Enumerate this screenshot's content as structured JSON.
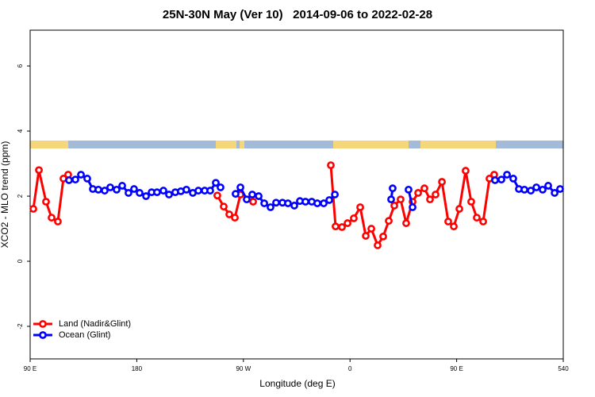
{
  "chart_data": {
    "type": "line",
    "title": "25N-30N May (Ver 10)   2014-09-06 to 2022-02-28",
    "x_label": "Longitude (deg E)",
    "y_label": "XCO2 - MLO trend (ppm)",
    "xlim": [
      90,
      540
    ],
    "ylim": [
      -3,
      7.1
    ],
    "xticks": [
      {
        "value": 90,
        "label": "90 E"
      },
      180,
      {
        "value": 270,
        "label": "90 W"
      },
      {
        "value": 360,
        "label": "0"
      },
      {
        "value": 450,
        "label": "90 E"
      },
      540
    ],
    "yticks": [
      -2,
      0,
      2,
      4,
      6
    ],
    "legend": "bottomleft",
    "series": [
      {
        "name": "Land (Nadir&Glint)",
        "color": "#ff0000",
        "x": [
          92.7,
          97.4,
          103.4,
          108.1,
          113.4,
          118.1,
          122.1,
          null,
          248.0,
          253.4,
          258.1,
          262.8,
          267.5,
          null,
          278.2,
          null,
          343.8,
          347.8,
          353.2,
          357.9,
          363.2,
          368.6,
          373.3,
          378.0,
          383.3,
          388.0,
          392.7,
          397.4,
          402.7,
          407.4,
          412.8,
          417.5,
          422.8,
          427.5,
          432.2,
          437.6,
          442.9,
          447.6,
          452.3,
          457.6,
          462.3,
          467.0,
          472.4,
          477.7,
          481.7
        ],
        "values": [
          1.61,
          2.8,
          1.83,
          1.34,
          1.22,
          2.54,
          2.66,
          null,
          2.02,
          1.68,
          1.44,
          1.34,
          2.05,
          null,
          1.83,
          null,
          2.95,
          1.07,
          1.05,
          1.17,
          1.32,
          1.66,
          0.78,
          1.0,
          0.49,
          0.76,
          1.24,
          1.71,
          1.9,
          1.17,
          1.83,
          2.1,
          2.24,
          1.9,
          2.05,
          2.44,
          1.22,
          1.07,
          1.61,
          2.78,
          1.83,
          1.34,
          1.22,
          2.54,
          2.66
        ]
      },
      {
        "name": "Ocean (Glint)",
        "color": "#0000ff",
        "x": [
          122.8,
          128.2,
          132.9,
          138.2,
          142.9,
          147.6,
          152.9,
          157.6,
          163.0,
          167.7,
          173.0,
          177.7,
          182.4,
          187.8,
          192.5,
          197.1,
          202.5,
          207.2,
          212.5,
          217.2,
          221.9,
          227.3,
          232.0,
          237.3,
          242.0,
          246.7,
          250.7,
          null,
          263.4,
          267.5,
          272.8,
          277.5,
          282.9,
          287.6,
          292.9,
          297.6,
          303.0,
          307.6,
          313.0,
          317.7,
          322.4,
          327.7,
          332.4,
          337.8,
          342.5,
          347.2,
          null,
          394.7,
          396.0,
          null,
          409.4,
          412.8,
          null,
          482.4,
          487.8,
          492.5,
          497.8,
          502.5,
          507.2,
          512.6,
          517.3,
          522.6,
          527.3,
          532.7,
          537.3
        ],
        "values": [
          2.49,
          2.51,
          2.66,
          2.54,
          2.22,
          2.2,
          2.17,
          2.27,
          2.2,
          2.32,
          2.1,
          2.22,
          2.1,
          2.0,
          2.12,
          2.12,
          2.17,
          2.05,
          2.12,
          2.15,
          2.2,
          2.1,
          2.17,
          2.17,
          2.17,
          2.41,
          2.27,
          null,
          2.07,
          2.27,
          1.9,
          2.05,
          2.0,
          1.78,
          1.66,
          1.8,
          1.8,
          1.78,
          1.71,
          1.85,
          1.83,
          1.83,
          1.78,
          1.78,
          1.88,
          2.05,
          null,
          1.9,
          2.24,
          null,
          2.2,
          1.66,
          null,
          2.49,
          2.51,
          2.66,
          2.54,
          2.22,
          2.2,
          2.17,
          2.27,
          2.2,
          2.32,
          2.1,
          2.22
        ]
      }
    ]
  }
}
